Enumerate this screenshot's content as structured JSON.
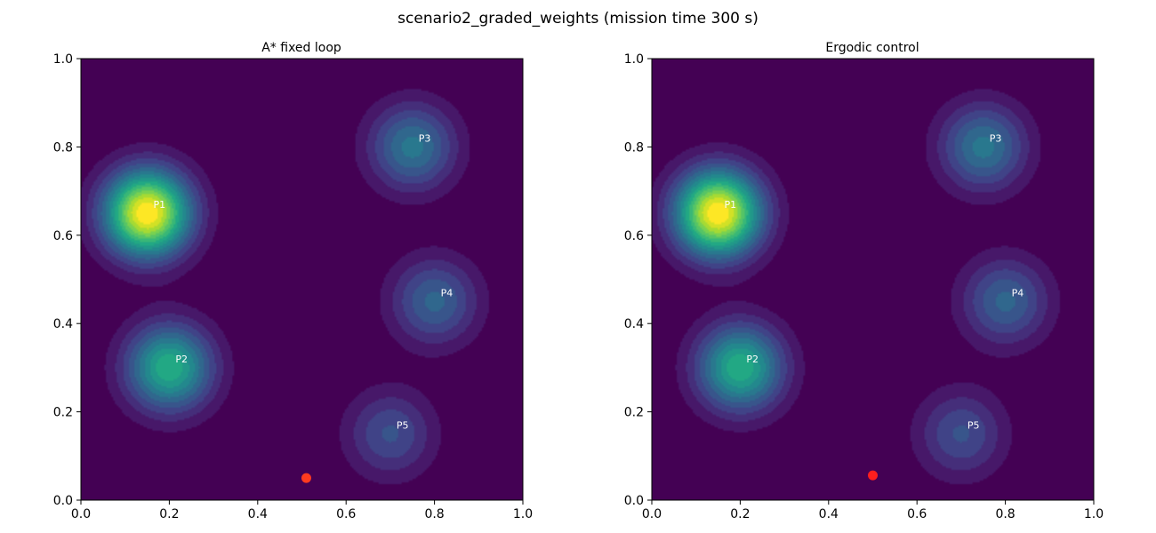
{
  "figure": {
    "suptitle": "scenario2_graded_weights  (mission time 300 s)"
  },
  "chart_data": [
    {
      "type": "heatmap",
      "title": "A* fixed loop",
      "xlim": [
        0,
        1
      ],
      "ylim": [
        0,
        1
      ],
      "x_ticks": [
        "0.0",
        "0.2",
        "0.4",
        "0.6",
        "0.8",
        "1.0"
      ],
      "y_ticks": [
        "0.0",
        "0.2",
        "0.4",
        "0.6",
        "0.8",
        "1.0"
      ],
      "peaks": [
        {
          "label": "P1",
          "x": 0.15,
          "y": 0.65,
          "weight": 1.0
        },
        {
          "label": "P2",
          "x": 0.2,
          "y": 0.3,
          "weight": 0.62
        },
        {
          "label": "P3",
          "x": 0.75,
          "y": 0.8,
          "weight": 0.4
        },
        {
          "label": "P4",
          "x": 0.8,
          "y": 0.45,
          "weight": 0.33
        },
        {
          "label": "P5",
          "x": 0.7,
          "y": 0.15,
          "weight": 0.26
        }
      ],
      "agent": {
        "x": 0.51,
        "y": 0.05,
        "color": "#ff3b1f"
      },
      "grid": false,
      "colormap": "viridis"
    },
    {
      "type": "heatmap",
      "title": "Ergodic control",
      "xlim": [
        0,
        1
      ],
      "ylim": [
        0,
        1
      ],
      "x_ticks": [
        "0.0",
        "0.2",
        "0.4",
        "0.6",
        "0.8",
        "1.0"
      ],
      "y_ticks": [
        "0.0",
        "0.2",
        "0.4",
        "0.6",
        "0.8",
        "1.0"
      ],
      "peaks": [
        {
          "label": "P1",
          "x": 0.15,
          "y": 0.65,
          "weight": 1.0
        },
        {
          "label": "P2",
          "x": 0.2,
          "y": 0.3,
          "weight": 0.62
        },
        {
          "label": "P3",
          "x": 0.75,
          "y": 0.8,
          "weight": 0.4
        },
        {
          "label": "P4",
          "x": 0.8,
          "y": 0.45,
          "weight": 0.33
        },
        {
          "label": "P5",
          "x": 0.7,
          "y": 0.15,
          "weight": 0.26
        }
      ],
      "agent": {
        "x": 0.5,
        "y": 0.056,
        "color": "#ff1e1e"
      },
      "grid": false,
      "colormap": "viridis"
    }
  ]
}
